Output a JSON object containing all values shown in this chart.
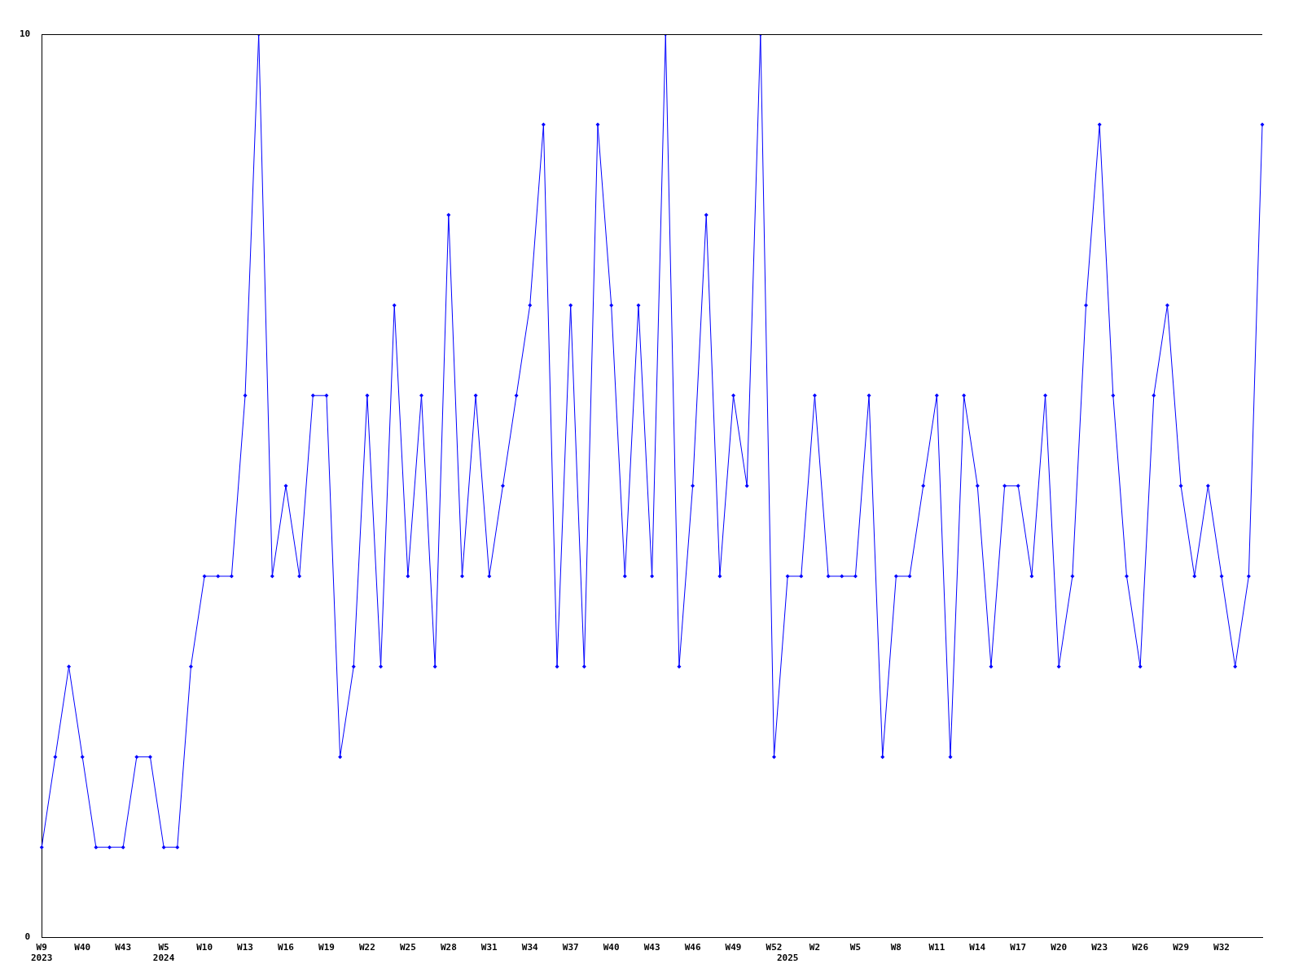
{
  "chart_data": {
    "type": "line",
    "categories": [
      "W9\n2023",
      null,
      null,
      "W40",
      null,
      null,
      "W43",
      null,
      null,
      "W5\n2024",
      null,
      null,
      "W10",
      null,
      null,
      "W13",
      null,
      null,
      "W16",
      null,
      null,
      "W19",
      null,
      null,
      "W22",
      null,
      null,
      "W25",
      null,
      null,
      "W28",
      null,
      null,
      "W31",
      null,
      null,
      "W34",
      null,
      null,
      "W37",
      null,
      null,
      "W40",
      null,
      null,
      "W43",
      null,
      null,
      "W46",
      null,
      null,
      "W49",
      null,
      null,
      "W52",
      "\n2025",
      null,
      "W2",
      null,
      null,
      "W5",
      null,
      null,
      "W8",
      null,
      null,
      "W11",
      null,
      null,
      "W14",
      null,
      null,
      "W17",
      null,
      null,
      "W20",
      null,
      null,
      "W23",
      null,
      null,
      "W26",
      null,
      null,
      "W29",
      null,
      null,
      "W32",
      null,
      null,
      null
    ],
    "values": [
      1,
      2,
      3,
      2,
      1,
      1,
      1,
      2,
      2,
      1,
      1,
      3,
      4,
      4,
      4,
      6,
      10,
      4,
      5,
      4,
      6,
      6,
      2,
      3,
      6,
      3,
      7,
      4,
      6,
      3,
      8,
      4,
      6,
      4,
      5,
      6,
      7,
      9,
      3,
      7,
      3,
      9,
      7,
      4,
      7,
      4,
      10,
      3,
      5,
      8,
      4,
      6,
      5,
      10,
      2,
      4,
      4,
      6,
      4,
      4,
      4,
      6,
      2,
      4,
      4,
      5,
      6,
      2,
      6,
      5,
      3,
      5,
      5,
      4,
      6,
      3,
      4,
      7,
      9,
      6,
      4,
      3,
      6,
      7,
      5,
      4,
      5,
      4,
      3,
      4,
      9
    ],
    "color": "#0000ff",
    "ylim": [
      0,
      10
    ],
    "yticks": [
      0,
      10
    ],
    "marker": "diamond"
  }
}
